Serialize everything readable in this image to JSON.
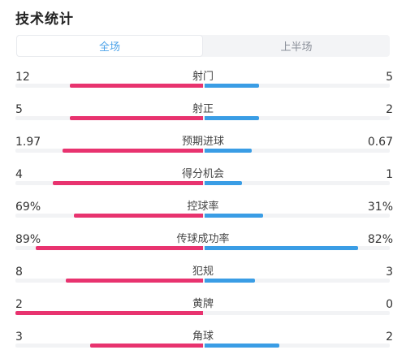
{
  "header": {
    "title": "技术统计"
  },
  "tabs": [
    {
      "label": "全场",
      "active": true
    },
    {
      "label": "上半场",
      "active": false
    }
  ],
  "colors": {
    "home": "#e8336f",
    "away": "#3a9de5",
    "tab_active": "#4da3e9"
  },
  "stats": [
    {
      "label": "射门",
      "left": "12",
      "right": "5",
      "left_share": 0.71,
      "right_share": 0.29
    },
    {
      "label": "射正",
      "left": "5",
      "right": "2",
      "left_share": 0.71,
      "right_share": 0.29
    },
    {
      "label": "预期进球",
      "left": "1.97",
      "right": "0.67",
      "left_share": 0.75,
      "right_share": 0.25
    },
    {
      "label": "得分机会",
      "left": "4",
      "right": "1",
      "left_share": 0.8,
      "right_share": 0.2
    },
    {
      "label": "控球率",
      "left": "69%",
      "right": "31%",
      "left_share": 0.69,
      "right_share": 0.31
    },
    {
      "label": "传球成功率",
      "left": "89%",
      "right": "82%",
      "left_share": 0.89,
      "right_share": 0.82
    },
    {
      "label": "犯规",
      "left": "8",
      "right": "3",
      "left_share": 0.73,
      "right_share": 0.27
    },
    {
      "label": "黄牌",
      "left": "2",
      "right": "0",
      "left_share": 1.0,
      "right_share": 0.0
    },
    {
      "label": "角球",
      "left": "3",
      "right": "2",
      "left_share": 0.6,
      "right_share": 0.4
    }
  ]
}
